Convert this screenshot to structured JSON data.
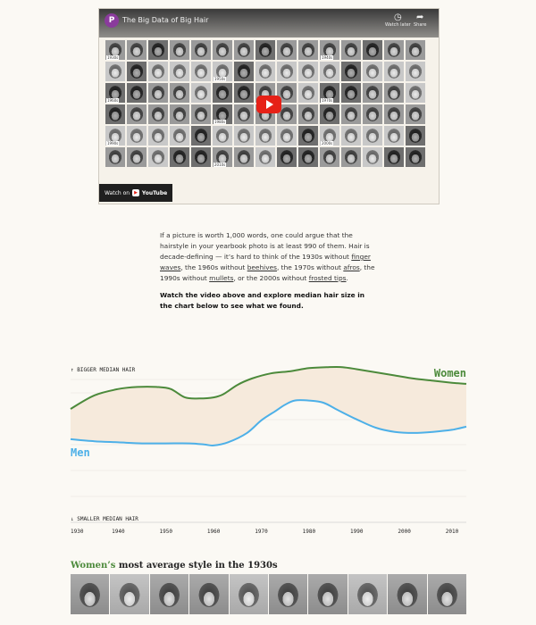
{
  "video": {
    "title": "The Big Data of Big Hair",
    "channel_initial": "P",
    "watch_later_label": "Watch later",
    "share_label": "Share",
    "watch_on_label": "Watch on",
    "youtube_label": "YouTube",
    "face_tags": [
      "1930s",
      "1940s",
      "1950s",
      "1960s",
      "1970s",
      "1980s",
      "1990s",
      "2000s",
      "2010s"
    ]
  },
  "intro": {
    "p1_a": "If a picture is worth 1,000 words, one could argue that the hairstyle in your yearbook photo is at least 990 of them. Hair is decade-defining — it’s hard to think of the 1930s without ",
    "link1": "finger waves",
    "p1_b": ", the 1960s without ",
    "link2": "beehives",
    "p1_c": ", the 1970s without ",
    "link3": "afros",
    "p1_d": ", the 1990s without ",
    "link4": "mullets",
    "p1_e": ", or the 2000s without ",
    "link5": "frosted tips",
    "p1_f": ".",
    "cta": "Watch the video above and explore median hair size in the chart below to see what we found."
  },
  "chart_data": {
    "type": "line",
    "top_label": "↑ BIGGER MEDIAN HAIR",
    "bottom_label": "↓ SMALLER MEDIAN HAIR",
    "x_ticks": [
      "1930",
      "1940",
      "1950",
      "1960",
      "1970",
      "1980",
      "1990",
      "2000",
      "2010"
    ],
    "xlim": [
      1930,
      2013
    ],
    "ylim": [
      0,
      1
    ],
    "grid": true,
    "series": [
      {
        "name": "Women",
        "color": "#4c8a3b",
        "x": [
          1930,
          1935,
          1940,
          1944,
          1948,
          1951,
          1954,
          1957,
          1960,
          1962,
          1965,
          1968,
          1972,
          1976,
          1980,
          1984,
          1987,
          1990,
          1994,
          1998,
          2002,
          2006,
          2010,
          2013
        ],
        "values": [
          0.59,
          0.72,
          0.78,
          0.8,
          0.8,
          0.78,
          0.7,
          0.69,
          0.7,
          0.73,
          0.82,
          0.88,
          0.93,
          0.95,
          0.98,
          0.99,
          0.99,
          0.97,
          0.94,
          0.91,
          0.88,
          0.86,
          0.84,
          0.83
        ]
      },
      {
        "name": "Men",
        "color": "#4db0e8",
        "x": [
          1930,
          1935,
          1940,
          1945,
          1950,
          1955,
          1958,
          1960,
          1963,
          1967,
          1970,
          1973,
          1975,
          1977,
          1980,
          1983,
          1986,
          1990,
          1994,
          1998,
          2002,
          2006,
          2010,
          2013
        ],
        "values": [
          0.3,
          0.28,
          0.27,
          0.26,
          0.26,
          0.26,
          0.25,
          0.24,
          0.27,
          0.36,
          0.48,
          0.57,
          0.63,
          0.67,
          0.67,
          0.65,
          0.58,
          0.49,
          0.41,
          0.37,
          0.36,
          0.37,
          0.39,
          0.42
        ]
      }
    ]
  },
  "section": {
    "title_highlight": "Women’s",
    "title_rest": " most average style in the 1930s"
  }
}
